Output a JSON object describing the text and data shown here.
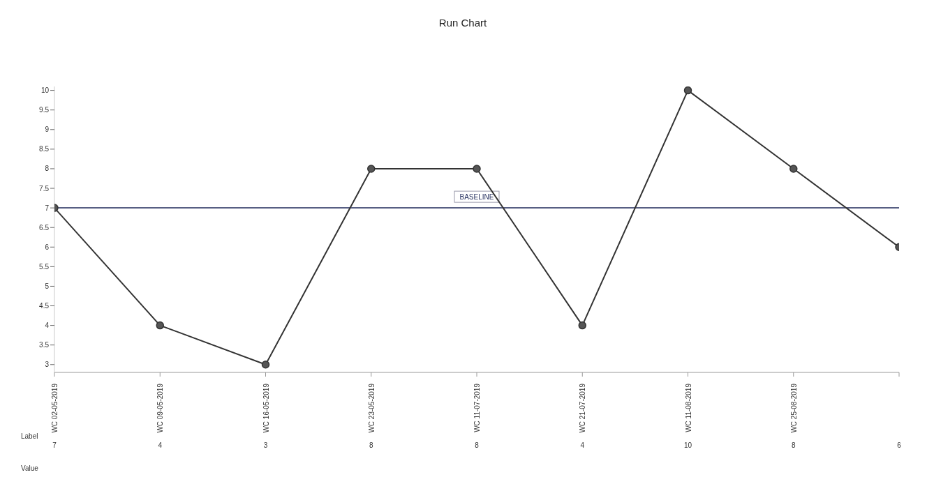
{
  "chart_data": {
    "type": "line",
    "title": "Run Chart",
    "categories": [
      "WC 02-05-2019",
      "WC 09-05-2019",
      "WC 16-05-2019",
      "WC 23-05-2019",
      "WC 11-07-2019",
      "WC 21-07-2019",
      "WC 11-08-2019",
      "WC 25-08-2019",
      null
    ],
    "series": [
      {
        "color": "#333333",
        "values": [
          7,
          4,
          3,
          8,
          8,
          4,
          10,
          8,
          6
        ]
      }
    ],
    "ylim": [
      2.8,
      10.1
    ],
    "yticks": [
      3,
      3.5,
      4,
      4.5,
      5,
      5.5,
      6,
      6.5,
      7,
      7.5,
      8,
      8.5,
      9,
      9.5,
      10
    ],
    "ref_lines": [
      {
        "axis": "y",
        "value": 7,
        "label": "BASELINE",
        "color": "#1f2a5a"
      }
    ],
    "annotations": [
      "Label",
      "Value"
    ],
    "data_labels": true,
    "marker": "circle",
    "line_style": "solid"
  }
}
